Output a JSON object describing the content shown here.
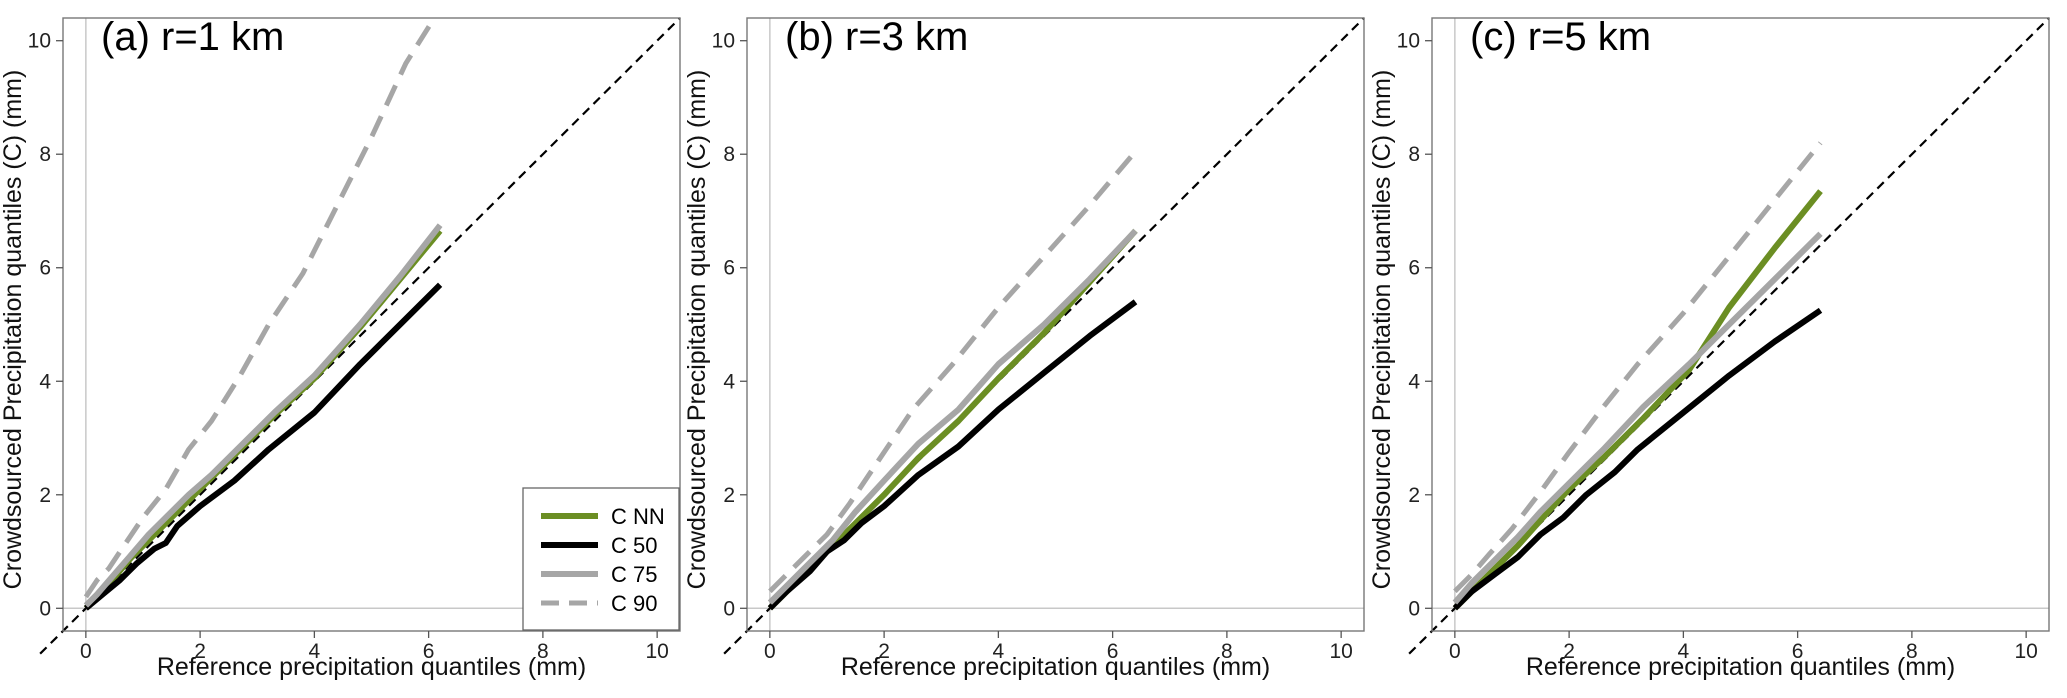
{
  "chart_data": [
    {
      "type": "line",
      "panel_label": "(a)  r=1 km",
      "xlabel": "Reference precipitation quantiles (mm)",
      "ylabel": "Crowdsourced Precipitation quantiles (C) (mm)",
      "xlim": [
        -0.4,
        10.4
      ],
      "ylim": [
        -0.4,
        10.4
      ],
      "xticks": [
        0,
        2,
        4,
        6,
        8,
        10
      ],
      "yticks": [
        0,
        2,
        4,
        6,
        8,
        10
      ],
      "legend": true,
      "legend_position": "bottom-right",
      "series": [
        {
          "name": "C NN",
          "color": "#6b8e23",
          "style": "solid",
          "x": [
            0,
            0.2,
            0.5,
            0.8,
            1.1,
            1.4,
            1.8,
            2.2,
            2.7,
            3.3,
            4.0,
            4.8,
            5.5,
            6.2
          ],
          "y": [
            0,
            0.2,
            0.55,
            0.9,
            1.2,
            1.5,
            1.9,
            2.3,
            2.8,
            3.4,
            4.05,
            4.95,
            5.8,
            6.65
          ]
        },
        {
          "name": "C 50",
          "color": "#000000",
          "style": "solid",
          "x": [
            0,
            0.3,
            0.6,
            0.9,
            1.2,
            1.4,
            1.6,
            2.0,
            2.6,
            3.2,
            4.0,
            4.8,
            5.5,
            6.2
          ],
          "y": [
            0,
            0.25,
            0.5,
            0.8,
            1.05,
            1.15,
            1.45,
            1.8,
            2.25,
            2.8,
            3.45,
            4.3,
            5.0,
            5.7
          ]
        },
        {
          "name": "C 75",
          "color": "#a6a6a6",
          "style": "solid",
          "x": [
            0,
            0.2,
            0.5,
            0.8,
            1.1,
            1.4,
            1.8,
            2.2,
            2.7,
            3.3,
            4.0,
            4.8,
            5.5,
            6.2
          ],
          "y": [
            0.05,
            0.25,
            0.6,
            0.95,
            1.3,
            1.6,
            2.0,
            2.35,
            2.85,
            3.45,
            4.1,
            5.0,
            5.85,
            6.75
          ]
        },
        {
          "name": "C 90",
          "color": "#a6a6a6",
          "style": "dashed",
          "x": [
            0,
            0.2,
            0.4,
            0.6,
            1.0,
            1.4,
            1.8,
            2.2,
            2.7,
            3.2,
            3.8,
            4.4,
            5.0,
            5.6,
            6.1
          ],
          "y": [
            0.2,
            0.5,
            0.7,
            1.0,
            1.6,
            2.1,
            2.8,
            3.3,
            4.1,
            5.0,
            5.9,
            7.1,
            8.3,
            9.6,
            10.4
          ]
        }
      ]
    },
    {
      "type": "line",
      "panel_label": "(b)  r=3 km",
      "xlabel": "Reference precipitation quantiles (mm)",
      "ylabel": "Crowdsourced Precipitation quantiles (C) (mm)",
      "xlim": [
        -0.4,
        10.4
      ],
      "ylim": [
        -0.4,
        10.4
      ],
      "xticks": [
        0,
        2,
        4,
        6,
        8,
        10
      ],
      "yticks": [
        0,
        2,
        4,
        6,
        8,
        10
      ],
      "legend": false,
      "series": [
        {
          "name": "C NN",
          "color": "#6b8e23",
          "style": "solid",
          "x": [
            0,
            0.3,
            0.7,
            1.1,
            1.5,
            2.0,
            2.6,
            3.3,
            4.0,
            4.8,
            5.6,
            6.4
          ],
          "y": [
            0,
            0.3,
            0.7,
            1.1,
            1.5,
            2.0,
            2.65,
            3.3,
            4.05,
            4.85,
            5.75,
            6.65
          ]
        },
        {
          "name": "C 50",
          "color": "#000000",
          "style": "solid",
          "x": [
            0,
            0.3,
            0.7,
            1.0,
            1.3,
            1.6,
            2.0,
            2.6,
            3.3,
            4.0,
            4.8,
            5.6,
            6.4
          ],
          "y": [
            0,
            0.3,
            0.65,
            1.0,
            1.2,
            1.5,
            1.8,
            2.35,
            2.85,
            3.5,
            4.15,
            4.8,
            5.4
          ]
        },
        {
          "name": "C 75",
          "color": "#a6a6a6",
          "style": "solid",
          "x": [
            0,
            0.3,
            0.7,
            1.1,
            1.5,
            2.0,
            2.6,
            3.3,
            4.0,
            4.8,
            5.6,
            6.4
          ],
          "y": [
            0.1,
            0.4,
            0.8,
            1.2,
            1.7,
            2.25,
            2.9,
            3.5,
            4.3,
            5.0,
            5.8,
            6.65
          ]
        },
        {
          "name": "C 90",
          "color": "#a6a6a6",
          "style": "dashed",
          "x": [
            0,
            0.3,
            0.6,
            1.0,
            1.4,
            1.9,
            2.5,
            3.2,
            4.0,
            4.8,
            5.6,
            6.4
          ],
          "y": [
            0.3,
            0.6,
            0.9,
            1.3,
            1.85,
            2.6,
            3.5,
            4.3,
            5.3,
            6.2,
            7.1,
            8.05
          ]
        }
      ]
    },
    {
      "type": "line",
      "panel_label": "(c)  r=5 km",
      "xlabel": "Reference precipitation quantiles (mm)",
      "ylabel": "Crowdsourced Precipitation quantiles (C) (mm)",
      "xlim": [
        -0.4,
        10.4
      ],
      "ylim": [
        -0.4,
        10.4
      ],
      "xticks": [
        0,
        2,
        4,
        6,
        8,
        10
      ],
      "yticks": [
        0,
        2,
        4,
        6,
        8,
        10
      ],
      "legend": false,
      "series": [
        {
          "name": "C NN",
          "color": "#6b8e23",
          "style": "solid",
          "x": [
            0,
            0.3,
            0.7,
            1.1,
            1.5,
            2.0,
            2.6,
            3.3,
            4.1,
            4.8,
            5.6,
            6.4
          ],
          "y": [
            0,
            0.3,
            0.7,
            1.1,
            1.55,
            2.1,
            2.65,
            3.35,
            4.2,
            5.3,
            6.35,
            7.35
          ]
        },
        {
          "name": "C 50",
          "color": "#000000",
          "style": "solid",
          "x": [
            0,
            0.3,
            0.7,
            1.1,
            1.5,
            1.9,
            2.3,
            2.8,
            3.2,
            4.0,
            4.8,
            5.6,
            6.4
          ],
          "y": [
            0,
            0.3,
            0.6,
            0.9,
            1.3,
            1.6,
            2.0,
            2.4,
            2.8,
            3.45,
            4.1,
            4.7,
            5.25
          ]
        },
        {
          "name": "C 75",
          "color": "#a6a6a6",
          "style": "solid",
          "x": [
            0,
            0.3,
            0.7,
            1.1,
            1.5,
            2.0,
            2.6,
            3.3,
            4.1,
            4.8,
            5.6,
            6.4
          ],
          "y": [
            0.1,
            0.45,
            0.85,
            1.25,
            1.7,
            2.2,
            2.8,
            3.55,
            4.3,
            5.0,
            5.8,
            6.6
          ]
        },
        {
          "name": "C 90",
          "color": "#a6a6a6",
          "style": "dashed",
          "x": [
            0,
            0.3,
            0.6,
            1.0,
            1.5,
            2.0,
            2.6,
            3.2,
            4.0,
            4.8,
            5.6,
            6.4
          ],
          "y": [
            0.3,
            0.6,
            0.95,
            1.4,
            2.05,
            2.75,
            3.55,
            4.3,
            5.2,
            6.2,
            7.2,
            8.2
          ]
        }
      ]
    }
  ]
}
